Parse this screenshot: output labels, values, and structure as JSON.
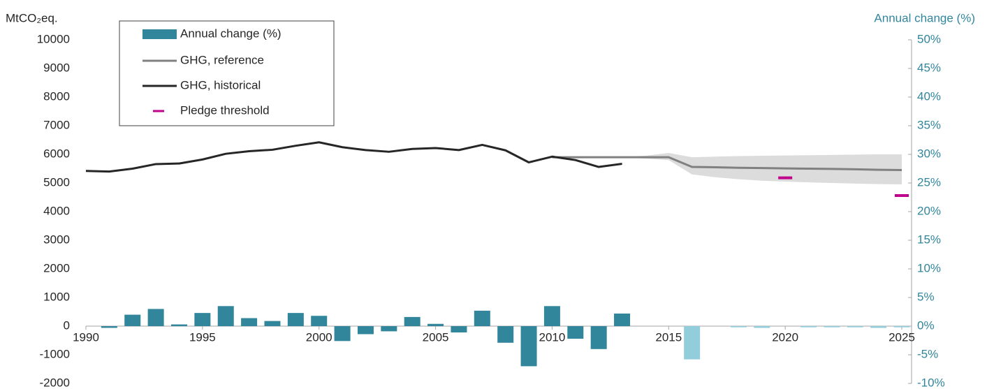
{
  "chart_data": {
    "type": "combo",
    "y_label": "MtCO₂eq.",
    "y2_label": "Annual change (%)",
    "xlim": [
      1990,
      2025
    ],
    "xticks": [
      1990,
      1995,
      2000,
      2005,
      2010,
      2015,
      2020,
      2025
    ],
    "ylim": [
      -2000,
      10000
    ],
    "yticks": [
      -2000,
      -1000,
      0,
      1000,
      2000,
      3000,
      4000,
      5000,
      6000,
      7000,
      8000,
      9000,
      10000
    ],
    "y2lim": [
      -10,
      50
    ],
    "y2ticks": [
      {
        "value": -10,
        "label": "-10%"
      },
      {
        "value": -5,
        "label": "-5%"
      },
      {
        "value": 0,
        "label": "0%"
      },
      {
        "value": 5,
        "label": "5%"
      },
      {
        "value": 10,
        "label": "10%"
      },
      {
        "value": 15,
        "label": "15%"
      },
      {
        "value": 20,
        "label": "20%"
      },
      {
        "value": 25,
        "label": "25%"
      },
      {
        "value": 30,
        "label": "30%"
      },
      {
        "value": 35,
        "label": "35%"
      },
      {
        "value": 40,
        "label": "40%"
      },
      {
        "value": 45,
        "label": "45%"
      },
      {
        "value": 50,
        "label": "50%"
      }
    ],
    "band": {
      "color": "#dcdcdc",
      "x": [
        2013,
        2014,
        2015,
        2016,
        2017,
        2018,
        2019,
        2020,
        2021,
        2022,
        2023,
        2024,
        2025
      ],
      "lower": [
        5900,
        5850,
        5800,
        5300,
        5200,
        5130,
        5080,
        5050,
        5020,
        5000,
        4980,
        4960,
        4950
      ],
      "upper": [
        5900,
        5950,
        6050,
        5900,
        5920,
        5940,
        5950,
        5960,
        5970,
        5980,
        5990,
        6000,
        6000
      ]
    },
    "series": [
      {
        "name": "Annual change (%)",
        "type": "bar",
        "axis": "y2",
        "color": "#31869b",
        "x": [
          1991,
          1992,
          1993,
          1994,
          1995,
          1996,
          1997,
          1998,
          1999,
          2000,
          2001,
          2002,
          2003,
          2004,
          2005,
          2006,
          2007,
          2008,
          2009,
          2010,
          2011,
          2012,
          2013,
          2014,
          2015,
          2016,
          2017,
          2018,
          2019,
          2020,
          2021,
          2022,
          2023,
          2024,
          2025
        ],
        "values": [
          -0.3,
          2.0,
          3.0,
          0.3,
          2.3,
          3.5,
          1.4,
          0.9,
          2.3,
          1.8,
          -2.6,
          -1.4,
          -0.9,
          1.6,
          0.4,
          -1.1,
          2.7,
          -2.9,
          -7.0,
          3.5,
          -2.2,
          -4.0,
          2.2,
          null,
          null,
          -5.8,
          null,
          -0.2,
          -0.3,
          null,
          -0.2,
          -0.2,
          -0.2,
          -0.3,
          -0.2
        ],
        "colors": [
          "#31869b",
          "#31869b",
          "#31869b",
          "#31869b",
          "#31869b",
          "#31869b",
          "#31869b",
          "#31869b",
          "#31869b",
          "#31869b",
          "#31869b",
          "#31869b",
          "#31869b",
          "#31869b",
          "#31869b",
          "#31869b",
          "#31869b",
          "#31869b",
          "#31869b",
          "#31869b",
          "#31869b",
          "#31869b",
          "#31869b",
          "#92cddc",
          "#92cddc",
          "#92cddc",
          "#92cddc",
          "#92cddc",
          "#92cddc",
          "#92cddc",
          "#92cddc",
          "#92cddc",
          "#92cddc",
          "#92cddc",
          "#92cddc"
        ]
      },
      {
        "name": "GHG, reference",
        "type": "line",
        "color": "#808080",
        "x": [
          2010,
          2011,
          2012,
          2013,
          2014,
          2015,
          2016,
          2017,
          2018,
          2019,
          2020,
          2021,
          2022,
          2023,
          2024,
          2025
        ],
        "values": [
          5900,
          5900,
          5900,
          5900,
          5900,
          5900,
          5560,
          5550,
          5530,
          5520,
          5510,
          5500,
          5490,
          5480,
          5460,
          5450
        ]
      },
      {
        "name": "GHG, historical",
        "type": "line",
        "color": "#262626",
        "x": [
          1990,
          1991,
          1992,
          1993,
          1994,
          1995,
          1996,
          1997,
          1998,
          1999,
          2000,
          2001,
          2002,
          2003,
          2004,
          2005,
          2006,
          2007,
          2008,
          2009,
          2010,
          2011,
          2012,
          2013
        ],
        "values": [
          5420,
          5400,
          5500,
          5660,
          5680,
          5820,
          6020,
          6110,
          6160,
          6300,
          6420,
          6250,
          6150,
          6090,
          6190,
          6220,
          6150,
          6330,
          6140,
          5720,
          5920,
          5800,
          5560,
          5670
        ]
      },
      {
        "name": "Pledge threshold",
        "type": "marker",
        "color": "#c0008a",
        "x": [
          2020,
          2025
        ],
        "values": [
          5180,
          4560
        ]
      }
    ]
  }
}
